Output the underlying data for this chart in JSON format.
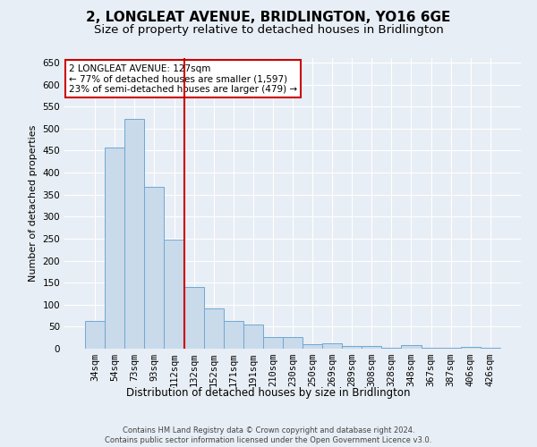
{
  "title": "2, LONGLEAT AVENUE, BRIDLINGTON, YO16 6GE",
  "subtitle": "Size of property relative to detached houses in Bridlington",
  "xlabel": "Distribution of detached houses by size in Bridlington",
  "ylabel": "Number of detached properties",
  "footer_line1": "Contains HM Land Registry data © Crown copyright and database right 2024.",
  "footer_line2": "Contains public sector information licensed under the Open Government Licence v3.0.",
  "categories": [
    "34sqm",
    "54sqm",
    "73sqm",
    "93sqm",
    "112sqm",
    "132sqm",
    "152sqm",
    "171sqm",
    "191sqm",
    "210sqm",
    "230sqm",
    "250sqm",
    "269sqm",
    "289sqm",
    "308sqm",
    "328sqm",
    "348sqm",
    "367sqm",
    "387sqm",
    "406sqm",
    "426sqm"
  ],
  "values": [
    62,
    456,
    521,
    367,
    248,
    140,
    91,
    62,
    55,
    27,
    26,
    11,
    12,
    6,
    7,
    2,
    8,
    3,
    2,
    5,
    3
  ],
  "bar_color": "#c9daea",
  "bar_edge_color": "#6fa8d4",
  "vline_x": 4.5,
  "vline_color": "#cc0000",
  "annotation_text": "2 LONGLEAT AVENUE: 127sqm\n← 77% of detached houses are smaller (1,597)\n23% of semi-detached houses are larger (479) →",
  "annotation_box_color": "white",
  "annotation_box_edge_color": "#cc0000",
  "ylim": [
    0,
    660
  ],
  "yticks": [
    0,
    50,
    100,
    150,
    200,
    250,
    300,
    350,
    400,
    450,
    500,
    550,
    600,
    650
  ],
  "background_color": "#e8eef5",
  "plot_background_color": "#e8eef5",
  "grid_color": "white",
  "title_fontsize": 11,
  "subtitle_fontsize": 9.5,
  "xlabel_fontsize": 8.5,
  "ylabel_fontsize": 8,
  "tick_fontsize": 7.5,
  "annotation_fontsize": 7.5,
  "footer_fontsize": 6
}
